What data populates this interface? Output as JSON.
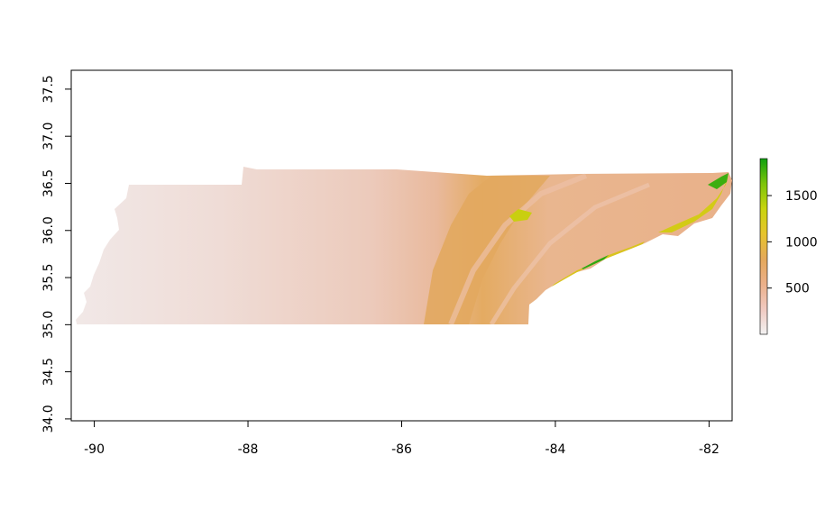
{
  "chart_data": {
    "type": "heatmap",
    "title": "",
    "xlabel": "",
    "ylabel": "",
    "x_ticks": [
      "-90",
      "-88",
      "-86",
      "-84",
      "-82"
    ],
    "x_tick_values": [
      -90,
      -88,
      -86,
      -84,
      -82
    ],
    "y_ticks": [
      "34.0",
      "34.5",
      "35.0",
      "35.5",
      "36.0",
      "36.5",
      "37.0",
      "37.5"
    ],
    "y_tick_values": [
      34.0,
      34.5,
      35.0,
      35.5,
      36.0,
      36.5,
      37.0,
      37.5
    ],
    "xlim": [
      -90.3,
      -81.7
    ],
    "ylim": [
      33.98,
      37.7
    ],
    "legend": {
      "placement": "right",
      "ticks": [
        "500",
        "1000",
        "1500"
      ],
      "tick_values": [
        500,
        1000,
        1500
      ],
      "range": [
        0,
        1900
      ],
      "colors": [
        "#f2f2f2",
        "#f0c9c0",
        "#ebb08a",
        "#e4a85a",
        "#e6c42c",
        "#c9d40f",
        "#7cc40a",
        "#0fa010"
      ]
    }
  }
}
